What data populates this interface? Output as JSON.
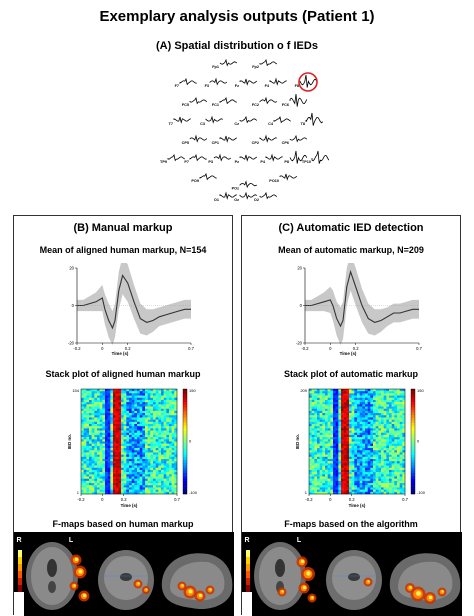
{
  "figure": {
    "title": "Exemplary analysis outputs (Patient 1)",
    "panel_a_title": "(A) Spatial distribution o f IEDs"
  },
  "electrodes": [
    {
      "name": "Fp1",
      "row": 0,
      "col": -1
    },
    {
      "name": "Fp2",
      "row": 0,
      "col": 1
    },
    {
      "name": "F7",
      "row": 1,
      "col": -3
    },
    {
      "name": "F3",
      "row": 1,
      "col": -1.5
    },
    {
      "name": "Fz",
      "row": 1,
      "col": 0
    },
    {
      "name": "F4",
      "row": 1,
      "col": 1.5
    },
    {
      "name": "F8",
      "row": 1,
      "col": 3
    },
    {
      "name": "FC5",
      "row": 2,
      "col": -2.5
    },
    {
      "name": "FC1",
      "row": 2,
      "col": -1
    },
    {
      "name": "FC2",
      "row": 2,
      "col": 1
    },
    {
      "name": "FC6",
      "row": 2,
      "col": 2.5
    },
    {
      "name": "T7",
      "row": 3,
      "col": -3.3
    },
    {
      "name": "C3",
      "row": 3,
      "col": -1.7
    },
    {
      "name": "Cz",
      "row": 3,
      "col": 0
    },
    {
      "name": "C4",
      "row": 3,
      "col": 1.7
    },
    {
      "name": "T8",
      "row": 3,
      "col": 3.3
    },
    {
      "name": "CP5",
      "row": 4,
      "col": -2.5
    },
    {
      "name": "CP1",
      "row": 4,
      "col": -1
    },
    {
      "name": "CP2",
      "row": 4,
      "col": 1
    },
    {
      "name": "CP6",
      "row": 4,
      "col": 2.5
    },
    {
      "name": "TP9",
      "row": 5,
      "col": -3.6
    },
    {
      "name": "P7",
      "row": 5,
      "col": -2.5
    },
    {
      "name": "P3",
      "row": 5,
      "col": -1.3
    },
    {
      "name": "Pz",
      "row": 5,
      "col": 0
    },
    {
      "name": "P4",
      "row": 5,
      "col": 1.3
    },
    {
      "name": "P8",
      "row": 5,
      "col": 2.5
    },
    {
      "name": "TP10",
      "row": 5,
      "col": 3.6
    },
    {
      "name": "PO9",
      "row": 6,
      "col": -2
    },
    {
      "name": "POz",
      "row": 6.4,
      "col": 0
    },
    {
      "name": "PO10",
      "row": 6,
      "col": 2
    },
    {
      "name": "O1",
      "row": 7,
      "col": -1
    },
    {
      "name": "Oz",
      "row": 7,
      "col": 0
    },
    {
      "name": "O2",
      "row": 7,
      "col": 1
    }
  ],
  "panel_b": {
    "title": "(B) Manual markup",
    "mean_title": "Mean of aligned human markup, N=154",
    "stack_title": "Stack plot of aligned human markup",
    "fmap_title": "F-maps based on human markup",
    "n": 154
  },
  "panel_c": {
    "title": "(C) Automatic IED detection",
    "mean_title": "Mean of automatic markup, N=209",
    "stack_title": "Stack plot of automatic markup",
    "fmap_title": "F-maps based on the algorithm",
    "n": 209
  },
  "axes": {
    "xlabel": "Time (s)",
    "ylabel_stack": "IED no.",
    "xticks": [
      -0.2,
      0,
      0.2,
      0.7
    ],
    "mean_yticks": [
      -20,
      0,
      20
    ],
    "colorbar_ticks": [
      150,
      0,
      -100
    ],
    "fmap_r": "R",
    "fmap_l": "L"
  },
  "chart_data": [
    {
      "type": "line",
      "title": "Mean of aligned human markup, N=154",
      "xlabel": "Time (s)",
      "xlim": [
        -0.2,
        0.7
      ],
      "ylim": [
        -20,
        20
      ],
      "x": [
        -0.2,
        -0.15,
        -0.1,
        -0.05,
        0.0,
        0.02,
        0.05,
        0.08,
        0.1,
        0.13,
        0.16,
        0.2,
        0.25,
        0.3,
        0.35,
        0.4,
        0.45,
        0.5,
        0.55,
        0.6,
        0.65,
        0.7
      ],
      "series": [
        {
          "values": [
            0,
            0,
            1,
            2,
            4,
            -2,
            -8,
            -12,
            -8,
            8,
            16,
            12,
            2,
            -7,
            -9,
            -8,
            -6,
            -5,
            -4,
            -3,
            -2,
            -2
          ]
        }
      ],
      "band_width": [
        3,
        3,
        4,
        5,
        7,
        8,
        9,
        9,
        9,
        10,
        10,
        10,
        9,
        8,
        7,
        6,
        5,
        5,
        5,
        5,
        5,
        5
      ]
    },
    {
      "type": "line",
      "title": "Mean of automatic markup, N=209",
      "xlabel": "Time (s)",
      "xlim": [
        -0.2,
        0.7
      ],
      "ylim": [
        -20,
        20
      ],
      "x": [
        -0.2,
        -0.15,
        -0.1,
        -0.05,
        0.0,
        0.02,
        0.05,
        0.08,
        0.1,
        0.13,
        0.16,
        0.2,
        0.25,
        0.3,
        0.35,
        0.4,
        0.45,
        0.5,
        0.55,
        0.6,
        0.65,
        0.7
      ],
      "series": [
        {
          "values": [
            0,
            0,
            1,
            2,
            3,
            0,
            -7,
            -11,
            -8,
            10,
            18,
            10,
            0,
            -7,
            -9,
            -8,
            -6,
            -4,
            -4,
            -3,
            -2,
            -2
          ]
        }
      ],
      "band_width": [
        3,
        3,
        4,
        5,
        7,
        8,
        9,
        10,
        10,
        10,
        10,
        10,
        9,
        8,
        7,
        6,
        5,
        5,
        5,
        5,
        5,
        5
      ]
    },
    {
      "type": "heatmap",
      "title": "Stack plot of aligned human markup",
      "xlabel": "Time (s)",
      "ylabel": "IED no.",
      "xlim": [
        -0.2,
        0.7
      ],
      "ylim": [
        1,
        154
      ],
      "colorbar": [
        -100,
        150
      ]
    },
    {
      "type": "heatmap",
      "title": "Stack plot of automatic markup",
      "xlabel": "Time (s)",
      "ylabel": "IED no.",
      "xlim": [
        -0.2,
        0.7
      ],
      "ylim": [
        1,
        209
      ],
      "colorbar": [
        -100,
        150
      ]
    }
  ]
}
